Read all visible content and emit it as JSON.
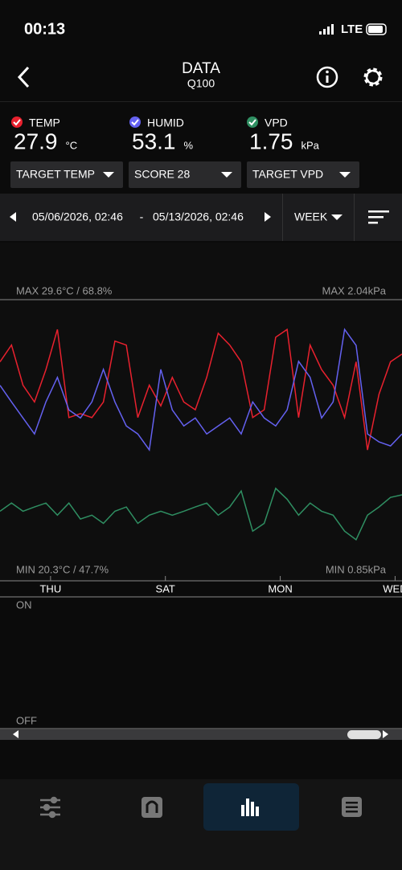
{
  "status": {
    "time": "00:13",
    "network": "LTE"
  },
  "header": {
    "title": "DATA",
    "subtitle": "Q100"
  },
  "readings": [
    {
      "value": 27.9,
      "unit": "°C"
    },
    {
      "value": 53.1,
      "unit": "%"
    },
    {
      "value": 1.75,
      "unit": "kPa"
    }
  ],
  "dropdowns": [
    "TARGET TEMP",
    "SCORE 28",
    "TARGET VPD"
  ],
  "range": {
    "start": "05/06/2026, 02:46",
    "separator": "-",
    "end": "05/13/2026, 02:46",
    "period": "WEEK"
  },
  "chart_data": {
    "type": "line",
    "max_left": "MAX 29.6°C / 68.8%",
    "max_right": "MAX 2.04kPa",
    "min_left": "MIN 20.3°C / 47.7%",
    "min_right": "MIN 0.85kPa",
    "xlim": [
      0,
      7
    ],
    "xticks": [
      {
        "value": 0.88,
        "label": "THU"
      },
      {
        "value": 2.88,
        "label": "SAT"
      },
      {
        "value": 4.88,
        "label": "MON"
      },
      {
        "value": 6.88,
        "label": "WED"
      }
    ],
    "x": [
      0,
      0.2,
      0.4,
      0.6,
      0.8,
      1.0,
      1.2,
      1.4,
      1.6,
      1.8,
      2.0,
      2.2,
      2.4,
      2.6,
      2.8,
      3.0,
      3.2,
      3.4,
      3.6,
      3.8,
      4.0,
      4.2,
      4.4,
      4.6,
      4.8,
      5.0,
      5.2,
      5.4,
      5.6,
      5.8,
      6.0,
      6.2,
      6.4,
      6.6,
      6.8,
      7.0
    ],
    "series": [
      {
        "name": "TEMP",
        "color": "#e8212e",
        "ylim": [
          10.2,
          31.9
        ],
        "values": [
          27.1,
          28.4,
          25.3,
          24.0,
          26.5,
          29.6,
          22.8,
          23.1,
          22.8,
          24.0,
          28.7,
          28.4,
          22.8,
          25.3,
          23.7,
          25.9,
          24.0,
          23.4,
          25.9,
          29.3,
          28.4,
          27.1,
          22.8,
          23.4,
          29.0,
          29.6,
          22.8,
          28.4,
          26.5,
          25.3,
          22.8,
          27.1,
          20.3,
          24.6,
          27.1,
          27.7
        ]
      },
      {
        "name": "HUMID",
        "color": "#6461f0",
        "ylim": [
          24.8,
          74.0
        ],
        "values": [
          59.0,
          56.1,
          53.3,
          50.5,
          56.1,
          60.4,
          54.7,
          53.3,
          56.1,
          61.8,
          56.1,
          51.9,
          50.5,
          47.7,
          61.8,
          54.7,
          51.9,
          53.3,
          50.5,
          51.9,
          53.3,
          50.5,
          56.1,
          53.3,
          51.9,
          54.7,
          63.2,
          60.4,
          53.3,
          56.1,
          68.8,
          66.0,
          50.5,
          49.1,
          48.4,
          50.5
        ]
      },
      {
        "name": "VPD",
        "color": "#2f8f62",
        "ylim": [
          -0.1,
          6.41
        ],
        "values": [
          1.51,
          1.7,
          1.51,
          1.61,
          1.7,
          1.42,
          1.7,
          1.33,
          1.42,
          1.23,
          1.51,
          1.61,
          1.23,
          1.42,
          1.51,
          1.42,
          1.51,
          1.61,
          1.7,
          1.42,
          1.61,
          1.98,
          1.05,
          1.23,
          2.04,
          1.79,
          1.42,
          1.7,
          1.51,
          1.42,
          1.05,
          0.85,
          1.42,
          1.61,
          1.83,
          1.89
        ]
      }
    ]
  },
  "switch_panel": {
    "on": "ON",
    "off": "OFF"
  }
}
